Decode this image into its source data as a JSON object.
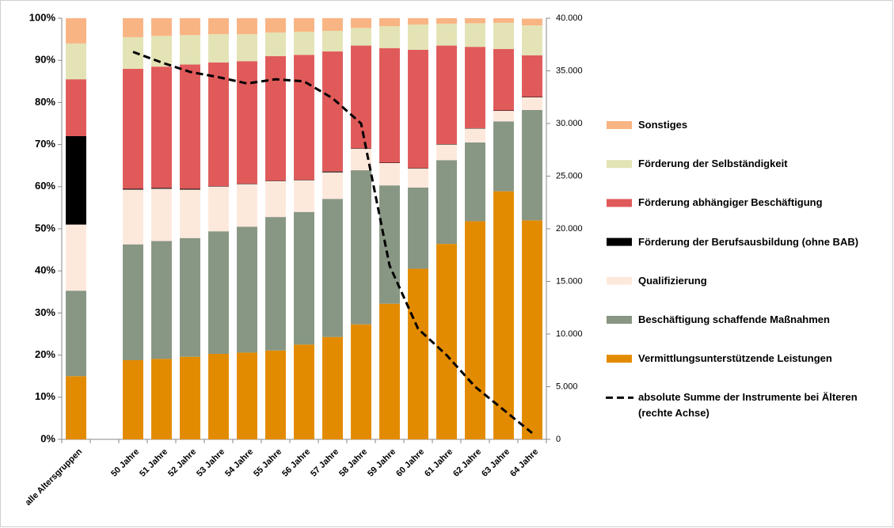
{
  "chart_data": {
    "type": "bar",
    "stacked": true,
    "categories": [
      "alle Altersgruppen",
      null,
      "50 Jahre",
      "51 Jahre",
      "52 Jahre",
      "53 Jahre",
      "54 Jahre",
      "55 Jahre",
      "56 Jahre",
      "57 Jahre",
      "58 Jahre",
      "59 Jahre",
      "60 Jahre",
      "61 Jahre",
      "62 Jahre",
      "63 Jahre",
      "64 Jahre"
    ],
    "series": [
      {
        "name": "Vermittlungsunterstützende Leistungen",
        "color": "#e38b00",
        "values": [
          15.0,
          null,
          18.8,
          19.1,
          19.6,
          20.3,
          20.6,
          21.1,
          22.5,
          24.3,
          27.3,
          32.2,
          40.5,
          46.4,
          51.8,
          58.9,
          52.0
        ]
      },
      {
        "name": "Beschäftigung schaffende Maßnahmen",
        "color": "#889684",
        "values": [
          20.3,
          null,
          27.5,
          28.0,
          28.2,
          29.1,
          29.9,
          31.7,
          31.5,
          32.8,
          36.6,
          28.1,
          19.3,
          19.9,
          18.7,
          16.6,
          26.2
        ]
      },
      {
        "name": "Qualifizierung",
        "color": "#fde9dc",
        "values": [
          15.7,
          null,
          13.0,
          12.4,
          11.5,
          10.6,
          10.1,
          8.5,
          7.5,
          6.3,
          5.1,
          5.3,
          4.5,
          3.7,
          3.3,
          2.5,
          3.0
        ]
      },
      {
        "name": "Förderung der Berufsausbildung (ohne BAB)",
        "color": "#000000",
        "values": [
          21.0,
          null,
          0.2,
          0.2,
          0.2,
          0.1,
          0.1,
          0.1,
          0.1,
          0.2,
          0.1,
          0.1,
          0.1,
          0.1,
          0.1,
          0.1,
          0.1
        ]
      },
      {
        "name": "Förderung abhängiger Beschäftigung",
        "color": "#e05a5a",
        "values": [
          13.5,
          null,
          28.5,
          28.8,
          29.5,
          29.4,
          29.1,
          29.6,
          29.7,
          28.5,
          24.4,
          27.2,
          28.1,
          23.4,
          19.3,
          14.6,
          9.9
        ]
      },
      {
        "name": "Förderung der Selbständigkeit",
        "color": "#e3e3b5",
        "values": [
          8.5,
          null,
          7.5,
          7.3,
          7.0,
          6.7,
          6.4,
          5.6,
          5.5,
          4.9,
          4.2,
          5.2,
          6.0,
          5.2,
          5.6,
          6.2,
          7.1
        ]
      },
      {
        "name": "Sonstiges",
        "color": "#f9b483",
        "values": [
          6.0,
          null,
          4.5,
          4.2,
          4.0,
          3.8,
          3.8,
          3.4,
          3.2,
          3.0,
          2.3,
          1.9,
          1.5,
          1.3,
          1.2,
          1.1,
          1.6
        ]
      },
      {
        "name": "absolute Summe der Instrumente bei Älteren (rechte Achse)",
        "color": "#000000",
        "type": "line",
        "axis": "y2",
        "dashed": true,
        "values": [
          null,
          null,
          36800,
          35800,
          34900,
          34400,
          33800,
          34200,
          34000,
          32400,
          30000,
          16500,
          10500,
          8000,
          5000,
          2800,
          600
        ]
      }
    ],
    "ylim": [
      0,
      100
    ],
    "yticks": [
      {
        "value": 0,
        "label": "0%"
      },
      {
        "value": 10,
        "label": "10%"
      },
      {
        "value": 20,
        "label": "20%"
      },
      {
        "value": 30,
        "label": "30%"
      },
      {
        "value": 40,
        "label": "40%"
      },
      {
        "value": 50,
        "label": "50%"
      },
      {
        "value": 60,
        "label": "60%"
      },
      {
        "value": 70,
        "label": "70%"
      },
      {
        "value": 80,
        "label": "80%"
      },
      {
        "value": 90,
        "label": "90%"
      },
      {
        "value": 100,
        "label": "100%"
      }
    ],
    "y2lim": [
      0,
      40000
    ],
    "y2ticks": [
      0,
      {
        "value": 5000,
        "label": "5.000"
      },
      {
        "value": 10000,
        "label": "10.000"
      },
      {
        "value": 15000,
        "label": "15.000"
      },
      {
        "value": 20000,
        "label": "20.000"
      },
      {
        "value": 25000,
        "label": "25.000"
      },
      {
        "value": 30000,
        "label": "30.000"
      },
      {
        "value": 35000,
        "label": "35.000"
      },
      {
        "value": 40000,
        "label": "40.000"
      }
    ],
    "legend": "right"
  }
}
